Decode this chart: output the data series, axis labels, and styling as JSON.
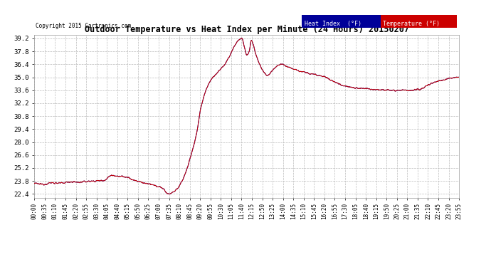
{
  "title": "Outdoor Temperature vs Heat Index per Minute (24 Hours) 20150207",
  "copyright_text": "Copyright 2015 Cartronics.com",
  "y_ticks": [
    22.4,
    23.8,
    25.2,
    26.6,
    28.0,
    29.4,
    30.8,
    32.2,
    33.6,
    35.0,
    36.4,
    37.8,
    39.2
  ],
  "ylim": [
    22.0,
    39.6
  ],
  "bg_color": "#ffffff",
  "grid_color": "#bbbbbb",
  "line_color_temp": "#cc0000",
  "line_color_heat": "#000099",
  "legend_heat_bg": "#000099",
  "legend_temp_bg": "#cc0000",
  "x_labels": [
    "00:00",
    "00:35",
    "01:10",
    "01:45",
    "02:20",
    "02:55",
    "03:30",
    "04:05",
    "04:40",
    "05:15",
    "05:50",
    "06:25",
    "07:00",
    "07:35",
    "08:10",
    "08:45",
    "09:20",
    "09:55",
    "10:30",
    "11:05",
    "11:40",
    "12:15",
    "12:50",
    "13:25",
    "14:00",
    "14:35",
    "15:10",
    "15:45",
    "16:20",
    "16:55",
    "17:30",
    "18:05",
    "18:40",
    "19:15",
    "19:50",
    "20:25",
    "21:00",
    "21:35",
    "22:10",
    "22:45",
    "23:20",
    "23:55"
  ],
  "n_points": 1440
}
